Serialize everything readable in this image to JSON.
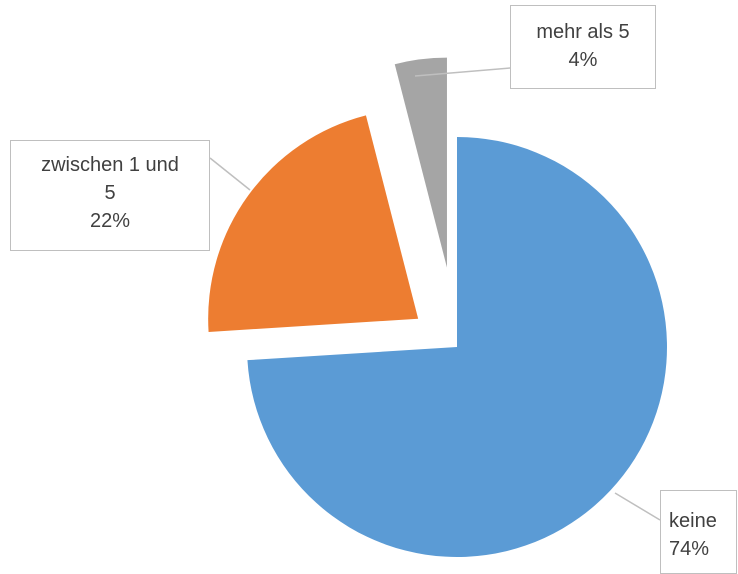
{
  "chart_data": {
    "type": "pie",
    "categories": [
      "keine",
      "zwischen 1 und 5",
      "mehr als 5"
    ],
    "values": [
      74,
      22,
      4
    ],
    "value_labels": [
      "74%",
      "22%",
      "4%"
    ],
    "colors": [
      "#5b9bd5",
      "#ed7d31",
      "#a5a5a5"
    ]
  }
}
